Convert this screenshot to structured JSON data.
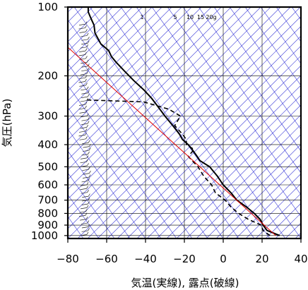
{
  "chart_data": {
    "type": "line",
    "title": "",
    "xlabel": "気温(実線), 露点(破線)",
    "ylabel": "気圧(hPa)",
    "xlim": [
      -80,
      40
    ],
    "ylim": [
      1030,
      100
    ],
    "y_scale": "log",
    "x_ticks": [
      -80,
      -60,
      -40,
      -20,
      0,
      20,
      40
    ],
    "x_tick_labels": [
      "−80",
      "−60",
      "−40",
      "−20",
      "0",
      "20",
      "40"
    ],
    "y_ticks": [
      100,
      200,
      300,
      400,
      500,
      600,
      700,
      800,
      900,
      1000
    ],
    "y_tick_labels": [
      "100",
      "200",
      "300",
      "400",
      "500",
      "600",
      "700",
      "800",
      "900",
      "1000"
    ],
    "grid": true,
    "mixing_ratio_labels": [
      "1",
      "5",
      "10",
      "15",
      "20g"
    ],
    "colors": {
      "temperature": "#000000",
      "dewpoint": "#000000",
      "reference": "#e00000",
      "guides": "#3a3ad8",
      "grid": "#000000"
    },
    "series": [
      {
        "style": "solid",
        "x": [
          29,
          22.5,
          20.5,
          19,
          16,
          12,
          7,
          4,
          0,
          -3,
          -7,
          -12,
          -13.5,
          -16,
          -18,
          -21,
          -22.5,
          -26,
          -30,
          -34,
          -37,
          -41,
          -46,
          -51,
          -55,
          -57.5,
          -59,
          -63,
          -66,
          -66.5,
          -67.5,
          -68.5,
          -69.5,
          -69.5
        ],
        "y": [
          1000,
          950,
          900,
          850,
          800,
          750,
          700,
          650,
          600,
          550,
          500,
          470,
          450,
          420,
          400,
          380,
          360,
          330,
          300,
          270,
          250,
          230,
          210,
          190,
          175,
          165,
          155,
          145,
          130,
          120,
          115,
          110,
          105,
          100
        ]
      },
      {
        "style": "dashed",
        "x": [
          24,
          20.5,
          19.5,
          13,
          8,
          4,
          1,
          -4,
          -6,
          -10,
          -13,
          -16,
          -18,
          -15,
          -19,
          -19,
          -21,
          -25,
          -22,
          -28,
          -41,
          -70
        ],
        "y": [
          1000,
          950,
          900,
          850,
          800,
          750,
          700,
          650,
          600,
          550,
          500,
          470,
          450,
          420,
          400,
          380,
          360,
          330,
          300,
          280,
          260,
          255
        ]
      },
      {
        "style": "thin",
        "x": [
          27,
          -80
        ],
        "y": [
          1000,
          150
        ]
      }
    ],
    "wind_profile": "left-side wind barbs from 1000 to 120 hPa"
  }
}
